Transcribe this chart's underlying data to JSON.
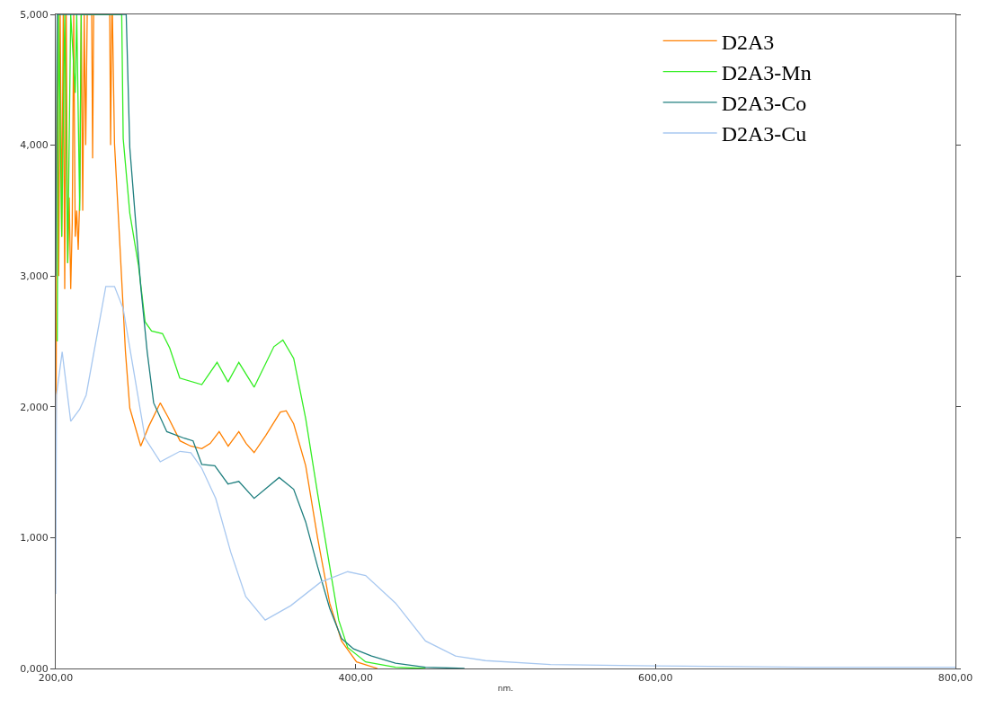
{
  "chart_data": {
    "type": "line",
    "xlabel": "nm.",
    "xlim": [
      200,
      800
    ],
    "xticks": [
      {
        "value": 200,
        "label": "200,00"
      },
      {
        "value": 400,
        "label": "400,00"
      },
      {
        "value": 600,
        "label": "600,00"
      },
      {
        "value": 800,
        "label": "800,00"
      }
    ],
    "ylim": [
      0,
      5
    ],
    "yticks": [
      {
        "value": 0,
        "label": "0,000"
      },
      {
        "value": 1,
        "label": "1,000"
      },
      {
        "value": 2,
        "label": "2,000"
      },
      {
        "value": 3,
        "label": "3,000"
      },
      {
        "value": 4,
        "label": "4,000"
      },
      {
        "value": 5,
        "label": "5,000"
      }
    ],
    "legend": "top right",
    "marker": "none",
    "line_style": "solid",
    "series": [
      {
        "name": "D2A3",
        "color": "#ff8000",
        "x": [
          200,
          201,
          202,
          203,
          204,
          205,
          206,
          207,
          208,
          209,
          210,
          211,
          212,
          213,
          214,
          215,
          216,
          217,
          218,
          219,
          220,
          221,
          224,
          224.6,
          225.3,
          236,
          236.6,
          237.4,
          237.8,
          239.2,
          242,
          246.5,
          249.4,
          256.7,
          262,
          269.7,
          275,
          282.9,
          290,
          297.4,
          303,
          309,
          315,
          322.1,
          327,
          332.3,
          340,
          349.8,
          353.7,
          358.7,
          366.7,
          374.6,
          382.7,
          390.6,
          400.6,
          414.6
        ],
        "values": [
          1.0,
          5,
          3.0,
          5,
          3.3,
          5,
          2.9,
          5,
          3.1,
          3.6,
          2.9,
          3.4,
          5,
          3.3,
          3.5,
          3.2,
          3.6,
          5,
          3.5,
          5,
          4.0,
          5,
          5,
          3.9,
          5,
          5,
          4.0,
          5,
          5,
          4.01,
          3.41,
          2.42,
          1.99,
          1.7,
          1.85,
          2.03,
          1.92,
          1.74,
          1.7,
          1.68,
          1.72,
          1.81,
          1.7,
          1.81,
          1.72,
          1.65,
          1.78,
          1.96,
          1.97,
          1.87,
          1.55,
          1.0,
          0.5,
          0.21,
          0.05,
          0
        ]
      },
      {
        "name": "D2A3-Mn",
        "color": "#33ee22",
        "x": [
          201,
          202,
          204,
          206,
          208,
          210,
          213,
          214,
          216,
          217,
          244,
          245,
          249.4,
          255.2,
          259.6,
          263.9,
          271.2,
          276,
          282.7,
          297.4,
          307.6,
          314.9,
          322.1,
          332.3,
          345.5,
          351.5,
          358.7,
          366.7,
          374.6,
          382.7,
          388.7,
          394.7,
          406.7,
          426.6,
          446.6
        ],
        "values": [
          2.5,
          5,
          3.3,
          5,
          3.1,
          5,
          4.4,
          5,
          3.5,
          5,
          5,
          4.05,
          3.48,
          3.08,
          2.65,
          2.58,
          2.56,
          2.45,
          2.22,
          2.17,
          2.34,
          2.19,
          2.34,
          2.15,
          2.46,
          2.51,
          2.37,
          1.91,
          1.34,
          0.78,
          0.37,
          0.16,
          0.05,
          0.01,
          0
        ]
      },
      {
        "name": "D2A3-Co",
        "color": "#1f7f7f",
        "x": [
          200,
          201,
          247,
          249.4,
          256.7,
          261,
          265.3,
          274.1,
          285.7,
          291.6,
          297.4,
          306.1,
          314.9,
          322.1,
          332.3,
          349,
          358.7,
          366.7,
          374.6,
          382.7,
          390.6,
          398.6,
          410.6,
          426.6,
          446.6,
          472.6
        ],
        "values": [
          3.0,
          5,
          5,
          3.98,
          2.92,
          2.42,
          2.03,
          1.81,
          1.76,
          1.74,
          1.56,
          1.55,
          1.41,
          1.43,
          1.3,
          1.46,
          1.37,
          1.12,
          0.78,
          0.46,
          0.23,
          0.15,
          0.095,
          0.04,
          0.01,
          0
        ]
      },
      {
        "name": "D2A3-Cu",
        "color": "#a8c8f0",
        "x": [
          200,
          200.5,
          204.3,
          210,
          215.9,
          220.3,
          233.4,
          239.2,
          245,
          252.2,
          259.6,
          269.7,
          282.9,
          290.1,
          297.4,
          306.7,
          316.7,
          326.7,
          339.7,
          356.7,
          376.7,
          394.7,
          406.7,
          426.6,
          446.6,
          466.6,
          486.6,
          530,
          600,
          700,
          800
        ],
        "values": [
          0.57,
          2.09,
          2.42,
          1.89,
          1.98,
          2.09,
          2.92,
          2.92,
          2.75,
          2.26,
          1.76,
          1.58,
          1.66,
          1.65,
          1.53,
          1.3,
          0.89,
          0.55,
          0.37,
          0.48,
          0.66,
          0.74,
          0.71,
          0.5,
          0.21,
          0.095,
          0.06,
          0.03,
          0.02,
          0.01,
          0.01
        ]
      }
    ]
  }
}
